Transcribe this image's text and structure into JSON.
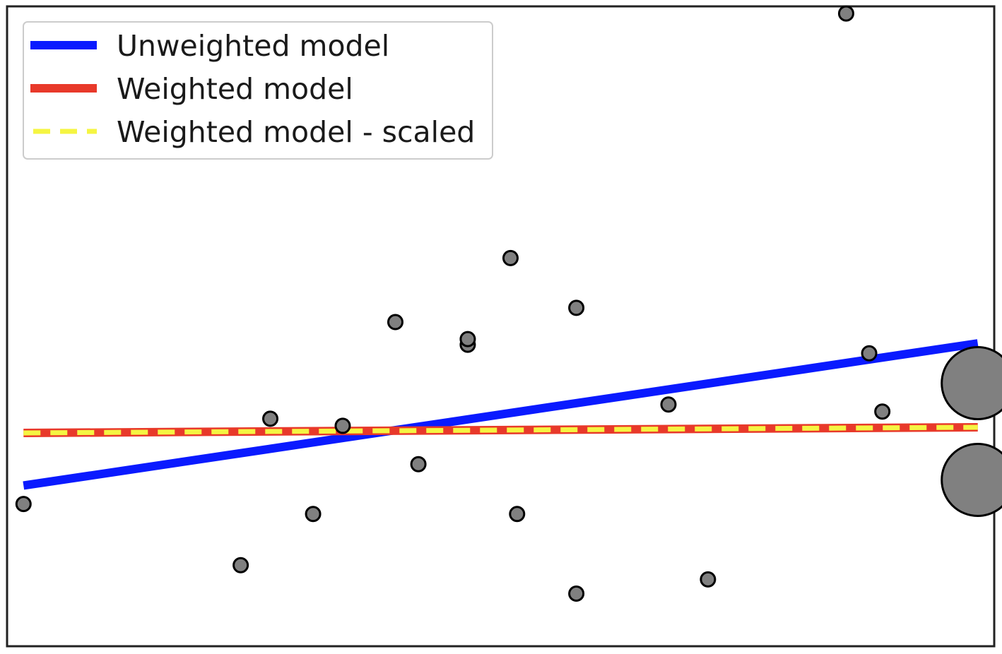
{
  "chart_data": {
    "type": "scatter",
    "title": "",
    "xlabel": "",
    "ylabel": "",
    "xlim": [
      -0.5,
      29.5
    ],
    "ylim": [
      -1.5,
      3.0
    ],
    "grid": false,
    "axes_ticks": false,
    "legend_placement": "top-left",
    "points": [
      {
        "x": 0,
        "y": -0.5,
        "size": 1
      },
      {
        "x": 6.6,
        "y": -0.93,
        "size": 1
      },
      {
        "x": 7.5,
        "y": 0.1,
        "size": 1
      },
      {
        "x": 8.8,
        "y": -0.57,
        "size": 1
      },
      {
        "x": 9.7,
        "y": 0.05,
        "size": 1
      },
      {
        "x": 11.3,
        "y": 0.78,
        "size": 1
      },
      {
        "x": 12.0,
        "y": -0.22,
        "size": 1
      },
      {
        "x": 13.5,
        "y": 0.62,
        "size": 1
      },
      {
        "x": 13.5,
        "y": 0.66,
        "size": 1
      },
      {
        "x": 14.8,
        "y": 1.23,
        "size": 1
      },
      {
        "x": 15.0,
        "y": -0.57,
        "size": 1
      },
      {
        "x": 16.8,
        "y": 0.88,
        "size": 1
      },
      {
        "x": 16.8,
        "y": -1.13,
        "size": 1
      },
      {
        "x": 19.6,
        "y": 0.2,
        "size": 1
      },
      {
        "x": 20.8,
        "y": -1.03,
        "size": 1
      },
      {
        "x": 25.0,
        "y": 2.95,
        "size": 1
      },
      {
        "x": 25.7,
        "y": 0.56,
        "size": 1
      },
      {
        "x": 26.1,
        "y": 0.15,
        "size": 1
      },
      {
        "x": 29.0,
        "y": 0.35,
        "size": 10
      },
      {
        "x": 29.0,
        "y": -0.33,
        "size": 10
      }
    ],
    "series": [
      {
        "name": "Unweighted model",
        "color": "#0a1aff",
        "style": "solid",
        "x": [
          0,
          29
        ],
        "y": [
          -0.37,
          0.63
        ]
      },
      {
        "name": "Weighted model",
        "color": "#e8392a",
        "style": "solid",
        "x": [
          0,
          29
        ],
        "y": [
          0.0,
          0.04
        ]
      },
      {
        "name": "Weighted model - scaled",
        "color": "#f5f542",
        "style": "dashed",
        "x": [
          0,
          29
        ],
        "y": [
          0.0,
          0.04
        ]
      }
    ],
    "marker_color": "#808080",
    "marker_edge": "#000000"
  }
}
